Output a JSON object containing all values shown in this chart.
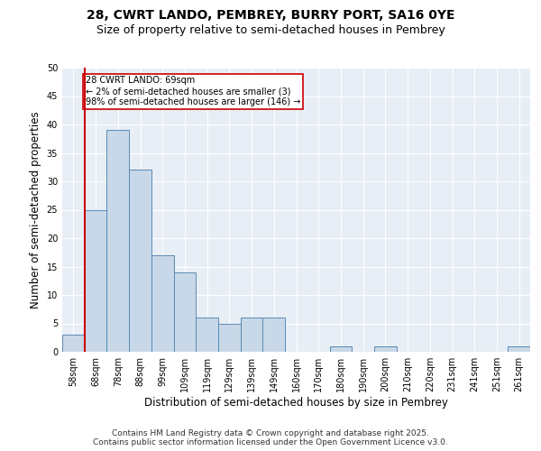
{
  "title_line1": "28, CWRT LANDO, PEMBREY, BURRY PORT, SA16 0YE",
  "title_line2": "Size of property relative to semi-detached houses in Pembrey",
  "xlabel": "Distribution of semi-detached houses by size in Pembrey",
  "ylabel": "Number of semi-detached properties",
  "categories": [
    "58sqm",
    "68sqm",
    "78sqm",
    "88sqm",
    "99sqm",
    "109sqm",
    "119sqm",
    "129sqm",
    "139sqm",
    "149sqm",
    "160sqm",
    "170sqm",
    "180sqm",
    "190sqm",
    "200sqm",
    "210sqm",
    "220sqm",
    "231sqm",
    "241sqm",
    "251sqm",
    "261sqm"
  ],
  "values": [
    3,
    25,
    39,
    32,
    17,
    14,
    6,
    5,
    6,
    6,
    0,
    0,
    1,
    0,
    1,
    0,
    0,
    0,
    0,
    0,
    1
  ],
  "bar_color": "#c8d8e8",
  "bar_edge_color": "#5a8ab5",
  "highlight_bar_index": 1,
  "highlight_line_color": "#cc0000",
  "annotation_text": "28 CWRT LANDO: 69sqm\n← 2% of semi-detached houses are smaller (3)\n98% of semi-detached houses are larger (146) →",
  "annotation_box_color": "#ffffff",
  "annotation_box_edge": "#cc0000",
  "ylim": [
    0,
    50
  ],
  "yticks": [
    0,
    5,
    10,
    15,
    20,
    25,
    30,
    35,
    40,
    45,
    50
  ],
  "background_color": "#e8eef5",
  "plot_background": "#e8eef5",
  "footer_line1": "Contains HM Land Registry data © Crown copyright and database right 2025.",
  "footer_line2": "Contains public sector information licensed under the Open Government Licence v3.0.",
  "title_fontsize": 10,
  "subtitle_fontsize": 9,
  "tick_fontsize": 7,
  "label_fontsize": 8.5,
  "footer_fontsize": 6.5
}
